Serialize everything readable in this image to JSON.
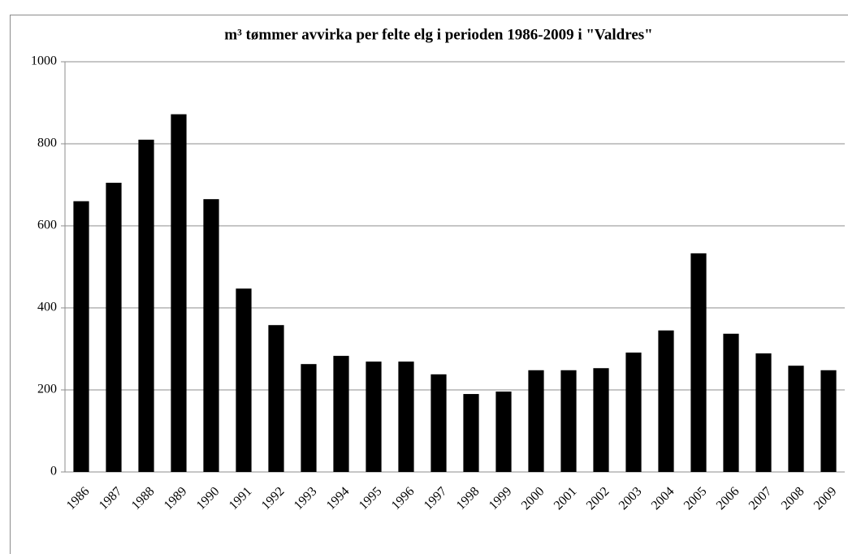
{
  "chart_data": {
    "type": "bar",
    "title": "m³ tømmer avvirka per felte elg i perioden 1986-2009 i \"Valdres\"",
    "categories": [
      "1986",
      "1987",
      "1988",
      "1989",
      "1990",
      "1991",
      "1992",
      "1993",
      "1994",
      "1995",
      "1996",
      "1997",
      "1998",
      "1999",
      "2000",
      "2001",
      "2002",
      "2003",
      "2004",
      "2005",
      "2006",
      "2007",
      "2008",
      "2009"
    ],
    "values": [
      660,
      705,
      810,
      872,
      665,
      447,
      358,
      263,
      283,
      269,
      269,
      238,
      190,
      196,
      248,
      248,
      253,
      291,
      345,
      533,
      337,
      289,
      259,
      248
    ],
    "color": "#000000",
    "ylim": [
      0,
      1000
    ],
    "yticks": [
      0,
      200,
      400,
      600,
      800,
      1000
    ],
    "grid": true
  }
}
